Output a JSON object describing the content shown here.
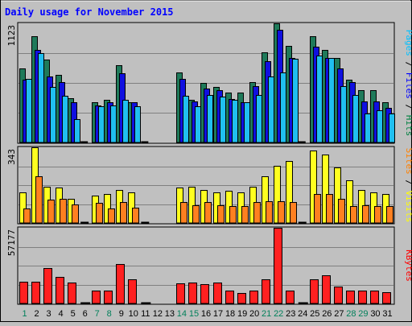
{
  "chart_data": {
    "type": "bar",
    "title": "Daily usage for November 2015",
    "categories": [
      "1",
      "2",
      "3",
      "4",
      "5",
      "6",
      "7",
      "8",
      "9",
      "10",
      "11",
      "12",
      "13",
      "14",
      "15",
      "16",
      "17",
      "18",
      "19",
      "20",
      "21",
      "22",
      "23",
      "24",
      "25",
      "26",
      "27",
      "28",
      "29",
      "30",
      "31"
    ],
    "weekend_days": [
      "1",
      "7",
      "8",
      "14",
      "15",
      "21",
      "22",
      "28",
      "29"
    ],
    "panels": [
      {
        "id": "hits",
        "ymax_label": "1123",
        "ymax": 1123,
        "right_label_parts": [
          {
            "text": "Pages",
            "color": "#00c0ff"
          },
          {
            "text": " / ",
            "color": "#000000"
          },
          {
            "text": "Files",
            "color": "#0000ff"
          },
          {
            "text": " / ",
            "color": "#000000"
          },
          {
            "text": "Hits",
            "color": "#008040"
          }
        ],
        "series": [
          {
            "name": "Hits",
            "color": "#1f7a5a",
            "values": [
              700,
              1000,
              780,
              640,
              420,
              0,
              380,
              400,
              730,
              380,
              0,
              0,
              0,
              660,
              400,
              560,
              520,
              470,
              470,
              570,
              850,
              1123,
              910,
              0,
              1000,
              870,
              800,
              590,
              490,
              490,
              380
            ]
          },
          {
            "name": "Files",
            "color": "#1010e0",
            "values": [
              590,
              870,
              620,
              570,
              380,
              0,
              350,
              380,
              650,
              380,
              0,
              0,
              0,
              600,
              390,
              510,
              490,
              410,
              380,
              530,
              770,
              1060,
              800,
              0,
              900,
              800,
              700,
              570,
              390,
              390,
              330
            ]
          },
          {
            "name": "Pages",
            "color": "#20bff0",
            "values": [
              600,
              840,
              520,
              440,
              220,
              0,
              340,
              350,
              400,
              340,
              0,
              0,
              0,
              440,
              340,
              450,
              430,
              400,
              380,
              450,
              620,
              660,
              790,
              0,
              820,
              800,
              530,
              450,
              270,
              300,
              270
            ]
          }
        ]
      },
      {
        "id": "visits",
        "ymax_label": "343",
        "ymax": 343,
        "right_label_parts": [
          {
            "text": "Sites",
            "color": "#ff8000"
          },
          {
            "text": " / ",
            "color": "#000000"
          },
          {
            "text": "Visits",
            "color": "#ffff00"
          }
        ],
        "series": [
          {
            "name": "Visits",
            "color": "#ffff20",
            "values": [
              140,
              343,
              165,
              160,
              110,
              0,
              125,
              130,
              150,
              140,
              0,
              0,
              0,
              160,
              165,
              150,
              140,
              145,
              140,
              165,
              210,
              260,
              280,
              0,
              330,
              310,
              250,
              195,
              150,
              140,
              130
            ]
          },
          {
            "name": "Sites",
            "color": "#ff8020",
            "values": [
              65,
              210,
              105,
              110,
              85,
              0,
              90,
              65,
              95,
              70,
              0,
              0,
              0,
              95,
              80,
              95,
              80,
              75,
              75,
              95,
              100,
              100,
              95,
              0,
              130,
              130,
              110,
              75,
              80,
              75,
              75
            ]
          }
        ]
      },
      {
        "id": "kbytes",
        "ymax_label": "57177",
        "ymax": 57177,
        "right_label_parts": [
          {
            "text": "KBytes",
            "color": "#ff0000"
          }
        ],
        "series": [
          {
            "name": "KBytes",
            "color": "#ff2020",
            "values": [
              16500,
              16500,
              26500,
              20000,
              16000,
              0,
              10000,
              10000,
              30000,
              18000,
              0,
              0,
              0,
              15000,
              16000,
              14500,
              16000,
              9500,
              8000,
              10000,
              18500,
              57177,
              10000,
              0,
              18000,
              21500,
              13000,
              10000,
              10000,
              10000,
              8500
            ]
          }
        ]
      }
    ]
  }
}
